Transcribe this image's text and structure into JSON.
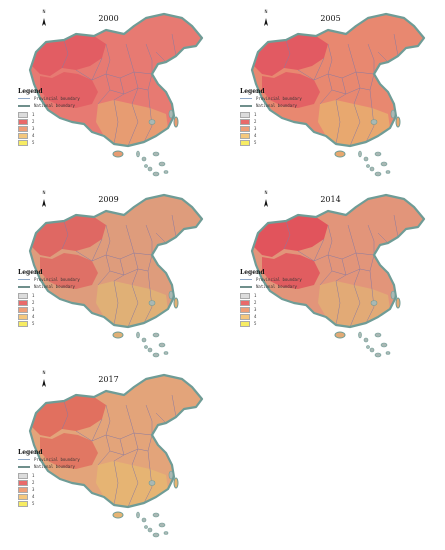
{
  "panels": [
    {
      "year": "2000",
      "fill_main": "#e77a72",
      "fill_west": "#e25d63",
      "fill_south": "#e79c72"
    },
    {
      "year": "2005",
      "fill_main": "#e88870",
      "fill_west": "#e25a62",
      "fill_south": "#e8a86f"
    },
    {
      "year": "2009",
      "fill_main": "#de9c7c",
      "fill_west": "#df6863",
      "fill_south": "#e0b076"
    },
    {
      "year": "2014",
      "fill_main": "#e2957a",
      "fill_west": "#e1545c",
      "fill_south": "#e2aa76"
    },
    {
      "year": "2017",
      "fill_main": "#e3a47a",
      "fill_west": "#e1705f",
      "fill_south": "#e6b473"
    }
  ],
  "legend": {
    "title": "Legend",
    "provincial": "Provincial boundary",
    "national": "National boundary",
    "classes": [
      "1",
      "2",
      "3",
      "4",
      "5"
    ]
  },
  "north_label": "N",
  "colors": {
    "border": "#6f9c96",
    "province_line": "#8a7aa0",
    "class_1": "#dcdcdc",
    "class_2": "#e96a6a",
    "class_3": "#ee9e78",
    "class_4": "#f4c77d",
    "class_5": "#f7ec63"
  }
}
